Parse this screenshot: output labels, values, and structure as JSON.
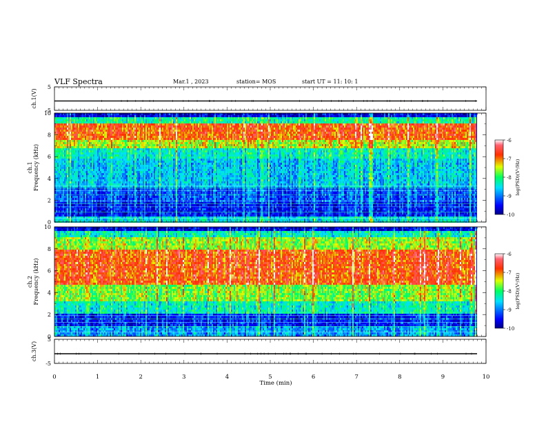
{
  "header": {
    "title": "VLF Spectra",
    "date": "Mar.1  , 2023",
    "station": "station= MOS",
    "start": "start  UT =   11: 10: 1"
  },
  "chart_data": [
    {
      "type": "line",
      "name": "ch1-voltage",
      "ylabel": "ch.1(V)",
      "ylim": [
        -5,
        5
      ],
      "yticks": [
        "5",
        "-5"
      ],
      "x": [
        0,
        10
      ],
      "values": [
        -1,
        -1
      ],
      "xlim": [
        0,
        10
      ]
    },
    {
      "type": "heatmap",
      "name": "ch1-spectrogram",
      "ylabel": "ch.1\nFrequency (kHz)",
      "yticks": [
        "0",
        "2",
        "4",
        "6",
        "8",
        "10"
      ],
      "ylim": [
        0,
        10
      ],
      "xlim": [
        0,
        10
      ],
      "colorbar": {
        "label": "log(PSD)(V²/Hz)",
        "ticks": [
          "-6",
          "-7",
          "-8",
          "-9",
          "-10"
        ],
        "range": [
          -10,
          -6
        ]
      }
    },
    {
      "type": "heatmap",
      "name": "ch2-spectrogram",
      "ylabel": "ch.2\nFrequency (kHz)",
      "yticks": [
        "0",
        "2",
        "4",
        "6",
        "8",
        "10"
      ],
      "ylim": [
        0,
        10
      ],
      "xlim": [
        0,
        10
      ],
      "colorbar": {
        "label": "log(PSD)(V²/Hz)",
        "ticks": [
          "-6",
          "-7",
          "-8",
          "-9",
          "-10"
        ],
        "range": [
          -10,
          -6
        ]
      }
    },
    {
      "type": "line",
      "name": "ch3-voltage",
      "ylabel": "ch.3(V)",
      "ylim": [
        -5,
        5
      ],
      "yticks": [
        "5",
        "-5"
      ],
      "x": [
        0,
        10
      ],
      "values": [
        -1,
        -1
      ],
      "xlim": [
        0,
        10
      ]
    }
  ],
  "xaxis": {
    "label": "Time  (min)",
    "ticks": [
      "0",
      "1",
      "2",
      "3",
      "4",
      "5",
      "6",
      "7",
      "8",
      "9",
      "10"
    ]
  }
}
